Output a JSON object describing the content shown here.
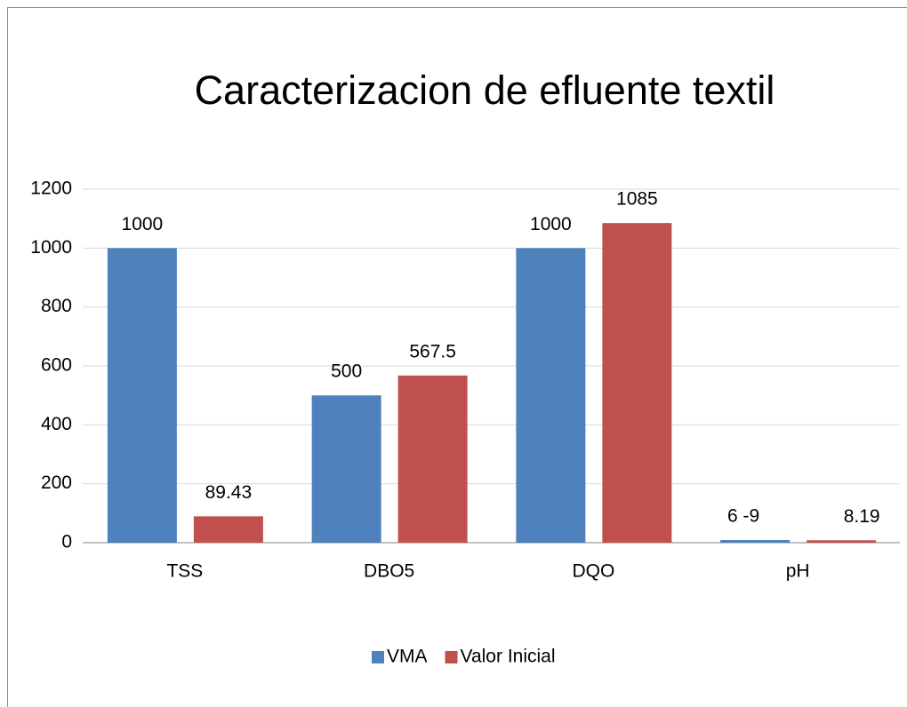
{
  "chart_data": {
    "type": "bar",
    "title": "Caracterizacion de efluente textil",
    "categories": [
      "TSS",
      "DBO5",
      "DQO",
      "pH"
    ],
    "series": [
      {
        "name": "VMA",
        "color": "#4f81bd",
        "values": [
          1000,
          500,
          1000,
          9
        ],
        "value_labels": [
          "1000",
          "500",
          "1000",
          "6 -9"
        ]
      },
      {
        "name": "Valor Inicial",
        "color": "#c0504d",
        "values": [
          89.43,
          567.5,
          1085,
          8.19
        ]
      }
    ],
    "ylim": [
      0,
      1200
    ],
    "yticks": [
      0,
      200,
      400,
      600,
      800,
      1000,
      1200
    ],
    "grid": true,
    "legend": "bottom"
  }
}
